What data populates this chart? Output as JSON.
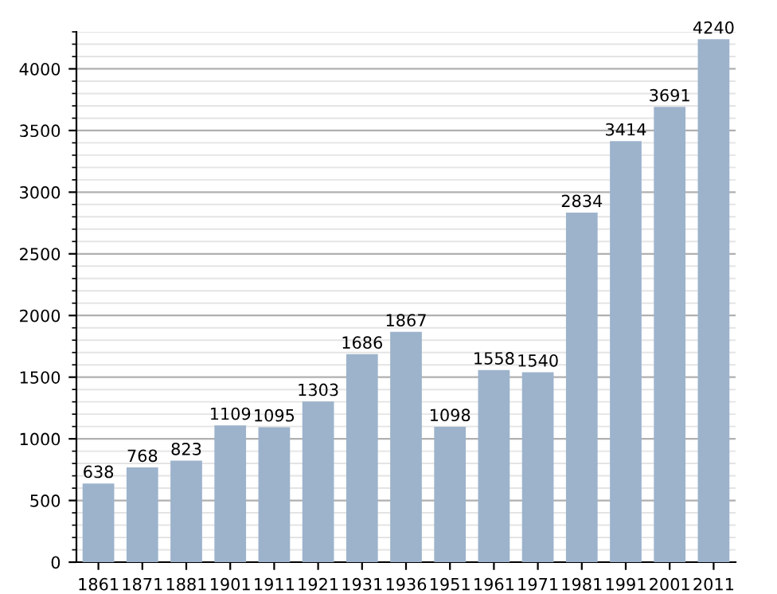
{
  "chart_data": {
    "type": "bar",
    "categories": [
      "1861",
      "1871",
      "1881",
      "1901",
      "1911",
      "1921",
      "1931",
      "1936",
      "1951",
      "1961",
      "1971",
      "1981",
      "1991",
      "2001",
      "2011"
    ],
    "values": [
      638,
      768,
      823,
      1109,
      1095,
      1303,
      1686,
      1867,
      1098,
      1558,
      1540,
      2834,
      3414,
      3691,
      4240
    ],
    "color": "#9db3cc",
    "ylim": [
      0,
      4300
    ],
    "yticks": [
      0,
      500,
      1000,
      1500,
      2000,
      2500,
      3000,
      3500,
      4000
    ],
    "grid": "y",
    "data_labels": true
  }
}
